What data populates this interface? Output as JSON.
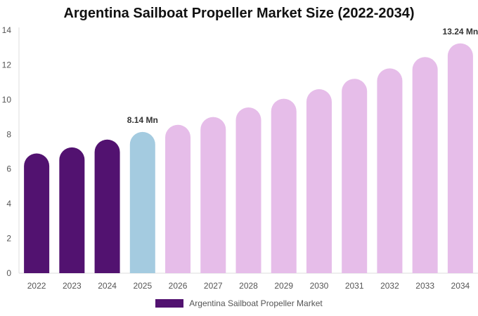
{
  "chart_data": {
    "type": "bar",
    "title": "Argentina Sailboat Propeller Market Size (2022-2034)",
    "xlabel": "",
    "ylabel": "",
    "categories": [
      "2022",
      "2023",
      "2024",
      "2025",
      "2026",
      "2027",
      "2028",
      "2029",
      "2030",
      "2031",
      "2032",
      "2033",
      "2034"
    ],
    "series": [
      {
        "name": "Argentina Sailboat Propeller Market",
        "values": [
          6.9,
          7.25,
          7.7,
          8.14,
          8.55,
          9.0,
          9.55,
          10.05,
          10.6,
          11.2,
          11.8,
          12.45,
          13.24
        ]
      }
    ],
    "ylim": [
      0,
      14
    ],
    "yticks": [
      0,
      2,
      4,
      6,
      8,
      10,
      12,
      14
    ],
    "grid": false,
    "legend_position": "bottom",
    "data_labels": [
      {
        "category": "2025",
        "text": "8.14 Mn"
      },
      {
        "category": "2034",
        "text": "13.24 Mn"
      }
    ],
    "colors": {
      "historical": "#521270",
      "current": "#a4cbe0",
      "forecast": "#e6bde9",
      "axis": "#dddddd",
      "tick_text": "#555555"
    },
    "bar_color_groups": [
      "historical",
      "historical",
      "historical",
      "current",
      "forecast",
      "forecast",
      "forecast",
      "forecast",
      "forecast",
      "forecast",
      "forecast",
      "forecast",
      "forecast"
    ]
  }
}
